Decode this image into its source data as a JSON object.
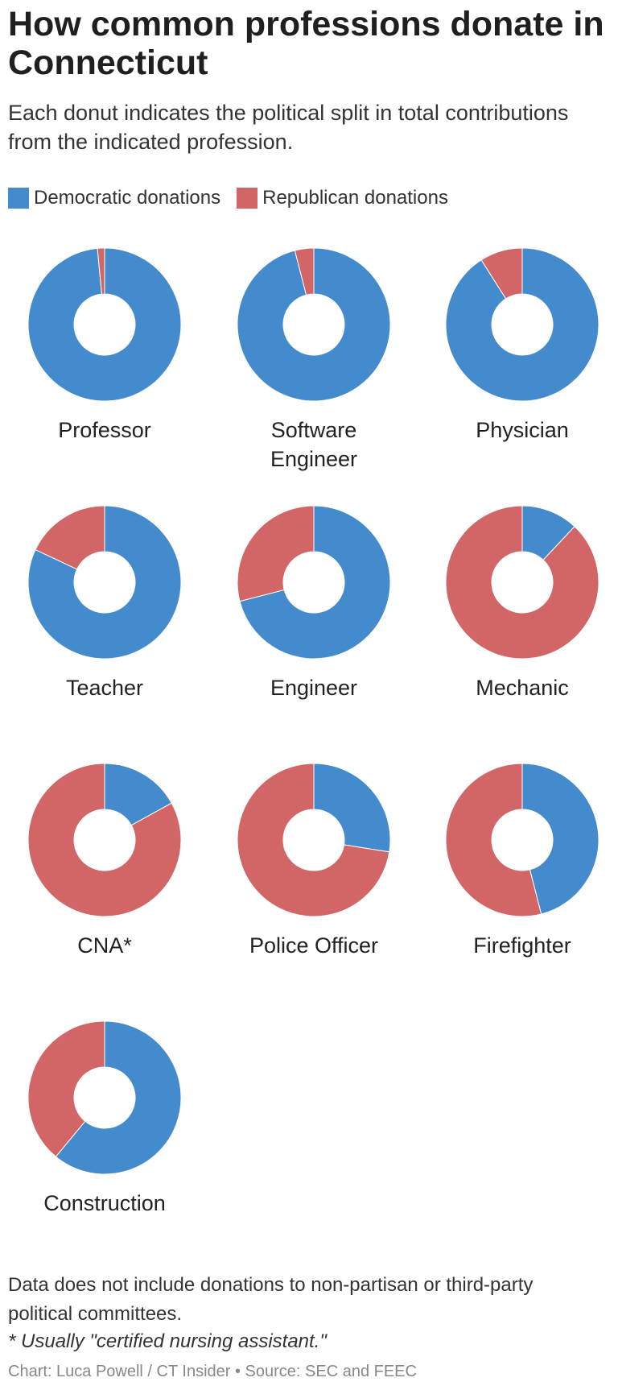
{
  "chart_data": {
    "type": "donut",
    "title": "How common professions donate in Connecticut",
    "subtitle": "Each donut indicates the political split in total contributions from the indicated profession.",
    "categories": [
      "Professor",
      "Software Engineer",
      "Physician",
      "Teacher",
      "Engineer",
      "Mechanic",
      "CNA*",
      "Police Officer",
      "Firefighter",
      "Construction"
    ],
    "series": [
      {
        "name": "Democratic donations",
        "color": "#448bcd",
        "values": [
          98.5,
          96,
          91,
          82,
          71,
          12,
          17,
          27.5,
          46,
          61
        ]
      },
      {
        "name": "Republican donations",
        "color": "#d26666",
        "values": [
          1.5,
          4,
          9,
          18,
          29,
          88,
          83,
          72.5,
          54,
          39
        ]
      }
    ],
    "note": "Data does not include donations to non-partisan or third-party political committees.",
    "footnote": "* Usually \"certified nursing assistant.\"",
    "credit": "Chart: Luca Powell / CT Insider • Source: SEC and FEEC"
  }
}
